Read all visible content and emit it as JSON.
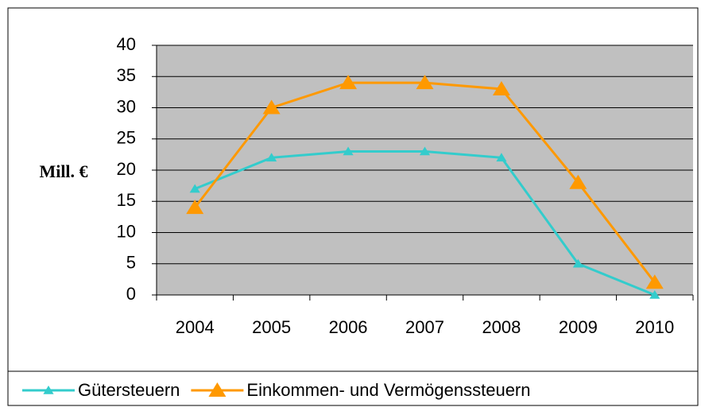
{
  "chart_data": {
    "type": "line",
    "y_label": "Mill. €",
    "categories": [
      "2004",
      "2005",
      "2006",
      "2007",
      "2008",
      "2009",
      "2010"
    ],
    "series": [
      {
        "name": "Gütersteuern",
        "color": "#33cccc",
        "marker": "triangle-small",
        "values": [
          17,
          22,
          23,
          23,
          22,
          5,
          0
        ]
      },
      {
        "name": "Einkommen- und Vermögenssteuern",
        "color": "#ff9900",
        "marker": "triangle-large",
        "values": [
          14,
          30,
          34,
          34,
          33,
          18,
          2
        ]
      }
    ],
    "ylim": [
      0,
      40
    ],
    "yticks": [
      0,
      5,
      10,
      15,
      20,
      25,
      30,
      35,
      40
    ],
    "grid": true,
    "plot_background": "#c0c0c0",
    "legend": "bottom"
  }
}
